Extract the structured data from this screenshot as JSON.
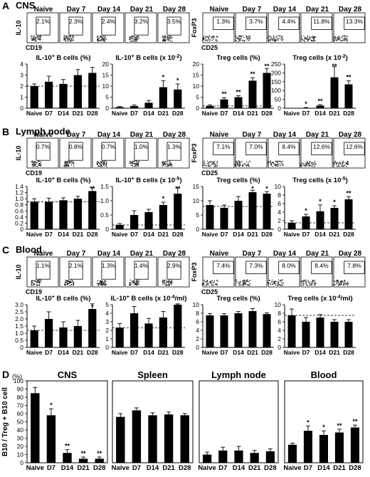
{
  "sections": [
    {
      "letter": "A",
      "title": "CNS"
    },
    {
      "letter": "B",
      "title": "Lymph node"
    },
    {
      "letter": "C",
      "title": "Blood"
    },
    {
      "letter": "D",
      "title": ""
    }
  ],
  "flow": {
    "columns": [
      "Naive",
      "Day 7",
      "Day 14",
      "Day 21",
      "Day 28"
    ],
    "il10_axes": {
      "y": "IL-10",
      "x": "CD19"
    },
    "treg_axes": {
      "y": "FoxP3",
      "x": "CD25"
    },
    "rows": [
      {
        "il10_pct": [
          "2.1%",
          "2.3%",
          "2.4%",
          "3.2%",
          "3.5%"
        ],
        "treg_pct": [
          "1.3%",
          "3.7%",
          "4.4%",
          "11.8%",
          "13.3%"
        ]
      },
      {
        "il10_pct": [
          "0.7%",
          "0.8%",
          "0.7%",
          "1.0%",
          "1.3%"
        ],
        "treg_pct": [
          "7.1%",
          "7.0%",
          "8.4%",
          "12.6%",
          "12.6%"
        ]
      },
      {
        "il10_pct": [
          "1.1%",
          "2.1%",
          "1.3%",
          "1.4%",
          "2.9%"
        ],
        "treg_pct": [
          "7.4%",
          "7.3%",
          "8.0%",
          "8.4%",
          "7.8%"
        ]
      }
    ]
  },
  "chart_data": [
    {
      "type": "bar",
      "section": "A",
      "title_pre": "IL-10",
      "title_sup": "+",
      "title_post": " B cells (%)",
      "categories": [
        "Naive",
        "D7",
        "D14",
        "D21",
        "D28"
      ],
      "values": [
        2.0,
        2.4,
        2.2,
        3.0,
        3.2
      ],
      "errors": [
        0.2,
        0.5,
        0.4,
        0.5,
        0.5
      ],
      "sig": [
        "",
        "",
        "",
        "",
        ""
      ],
      "ylim": [
        0,
        4
      ],
      "yticks": [
        "0",
        "1",
        "2",
        "3",
        "4"
      ],
      "ref": 2.0
    },
    {
      "type": "bar",
      "section": "A",
      "title_pre": "IL-10",
      "title_sup": "+",
      "title_post": " B cells (x 10",
      "title_exp": "-2",
      "title_end": ")",
      "categories": [
        "Naive",
        "D7",
        "D14",
        "D21",
        "D28"
      ],
      "values": [
        0.5,
        1.0,
        2.5,
        9.5,
        8.5
      ],
      "errors": [
        0.3,
        0.5,
        1.0,
        3.0,
        2.5
      ],
      "sig": [
        "",
        "",
        "",
        "*",
        "*"
      ],
      "ylim": [
        0,
        20
      ],
      "yticks": [
        "0",
        "5",
        "10",
        "15",
        "20"
      ],
      "ref": null
    },
    {
      "type": "bar",
      "section": "A",
      "title_pre": "Treg cells (%)",
      "categories": [
        "Naive",
        "D7",
        "D14",
        "D21",
        "D28"
      ],
      "values": [
        1.0,
        4.0,
        5.0,
        12.5,
        16.0
      ],
      "errors": [
        0.5,
        0.8,
        0.7,
        1.3,
        2.0
      ],
      "sig": [
        "",
        "**",
        "**",
        "**",
        "**"
      ],
      "ylim": [
        0,
        20
      ],
      "yticks": [
        "0",
        "5",
        "10",
        "15",
        "20"
      ],
      "ref": 1.0
    },
    {
      "type": "bar",
      "section": "A",
      "title_pre": "Treg cells (x 10",
      "title_exp": "-2",
      "title_end": ")",
      "categories": [
        "Naive",
        "D7",
        "D14",
        "D21",
        "D28"
      ],
      "values": [
        0,
        2,
        15,
        175,
        135
      ],
      "errors": [
        0,
        2,
        5,
        60,
        20
      ],
      "sig": [
        "",
        "*",
        "**",
        "**",
        "**"
      ],
      "ylim": [
        0,
        250
      ],
      "yticks": [
        "0",
        "50",
        "100",
        "150",
        "200",
        "250"
      ],
      "ref": null
    },
    {
      "type": "bar",
      "section": "B",
      "title_pre": "IL-10",
      "title_sup": "+",
      "title_post": " B cells (%)",
      "categories": [
        "Naive",
        "D7",
        "D14",
        "D21",
        "D28"
      ],
      "values": [
        0.9,
        0.9,
        0.95,
        1.0,
        1.25
      ],
      "errors": [
        0.1,
        0.12,
        0.08,
        0.08,
        0.12
      ],
      "sig": [
        "",
        "",
        "",
        "",
        "**"
      ],
      "ylim": [
        0,
        1.4
      ],
      "yticks": [
        "0",
        "0.2",
        "0.4",
        "0.6",
        "0.8",
        "1.0",
        "1.2",
        "1.4"
      ],
      "ref": 0.9
    },
    {
      "type": "bar",
      "section": "B",
      "title_pre": "IL-10",
      "title_sup": "+",
      "title_post": " B cells (x 10",
      "title_exp": "-5",
      "title_end": ")",
      "categories": [
        "Naive",
        "D7",
        "D14",
        "D21",
        "D28"
      ],
      "values": [
        0.15,
        0.5,
        0.6,
        0.85,
        1.25
      ],
      "errors": [
        0.05,
        0.15,
        0.1,
        0.1,
        0.2
      ],
      "sig": [
        "",
        "",
        "",
        "*",
        "**"
      ],
      "ylim": [
        0,
        1.5
      ],
      "yticks": [
        "0",
        "0.5",
        "1.0",
        "1.5"
      ],
      "ref": 0.15
    },
    {
      "type": "bar",
      "section": "B",
      "title_pre": "Treg cells (%)",
      "categories": [
        "Naive",
        "D7",
        "D14",
        "D21",
        "D28"
      ],
      "values": [
        8.5,
        7.5,
        10.0,
        13.0,
        12.5
      ],
      "errors": [
        1.5,
        1.0,
        1.5,
        0.7,
        0.7
      ],
      "sig": [
        "",
        "",
        "",
        "*",
        "*"
      ],
      "ylim": [
        0,
        15
      ],
      "yticks": [
        "0",
        "5",
        "10",
        "15"
      ],
      "ref": 8.0
    },
    {
      "type": "bar",
      "section": "B",
      "title_pre": "Treg cells (x 10",
      "title_exp": "-5",
      "title_end": ")",
      "categories": [
        "Naive",
        "D7",
        "D14",
        "D21",
        "D28"
      ],
      "values": [
        1.5,
        3.0,
        4.2,
        5.0,
        7.0
      ],
      "errors": [
        0.5,
        0.5,
        1.5,
        0.5,
        0.6
      ],
      "sig": [
        "",
        "*",
        "*",
        "*",
        "**"
      ],
      "ylim": [
        0,
        10
      ],
      "yticks": [
        "0",
        "2",
        "4",
        "6",
        "8",
        "10"
      ],
      "ref": 1.5
    },
    {
      "type": "bar",
      "section": "C",
      "title_pre": "IL-10",
      "title_sup": "+",
      "title_post": " B cells (%)",
      "categories": [
        "Naive",
        "D7",
        "D14",
        "D21",
        "D28"
      ],
      "values": [
        1.2,
        2.0,
        1.4,
        1.5,
        2.7
      ],
      "errors": [
        0.3,
        0.5,
        0.4,
        0.4,
        0.4
      ],
      "sig": [
        "",
        "",
        "",
        "",
        "*"
      ],
      "ylim": [
        0,
        3
      ],
      "yticks": [
        "0",
        "0.5",
        "1.0",
        "1.5",
        "2.0",
        "2.5",
        "3.0"
      ],
      "ref": 1.2
    },
    {
      "type": "bar",
      "section": "C",
      "title_pre": "IL-10",
      "title_sup": "+",
      "title_post": " B cells (x 10",
      "title_exp": "-4",
      "title_end": "/ml)",
      "categories": [
        "Naive",
        "D7",
        "D14",
        "D21",
        "D28"
      ],
      "values": [
        2.3,
        4.0,
        2.8,
        3.5,
        5.0
      ],
      "errors": [
        0.5,
        0.8,
        0.6,
        0.7,
        0.6
      ],
      "sig": [
        "",
        "",
        "",
        "",
        "**"
      ],
      "ylim": [
        0,
        5
      ],
      "yticks": [
        "0",
        "1",
        "2",
        "3",
        "4",
        "5"
      ],
      "ref": 2.3
    },
    {
      "type": "bar",
      "section": "C",
      "title_pre": "Treg cells (%)",
      "categories": [
        "Naive",
        "D7",
        "D14",
        "D21",
        "D28"
      ],
      "values": [
        7.5,
        7.5,
        8.0,
        8.5,
        7.8
      ],
      "errors": [
        0.4,
        0.4,
        0.4,
        0.6,
        0.3
      ],
      "sig": [
        "",
        "",
        "",
        "",
        ""
      ],
      "ylim": [
        0,
        10
      ],
      "yticks": [
        "0",
        "2",
        "4",
        "6",
        "8",
        "10"
      ],
      "ref": null
    },
    {
      "type": "bar",
      "section": "C",
      "title_pre": "Treg cells (x 10",
      "title_exp": "-4",
      "title_end": "/ml)",
      "categories": [
        "Naive",
        "D7",
        "D14",
        "D21",
        "D28"
      ],
      "values": [
        7.5,
        6.0,
        7.0,
        6.0,
        6.0
      ],
      "errors": [
        1.5,
        1.0,
        0.7,
        0.5,
        0.5
      ],
      "sig": [
        "",
        "",
        "",
        "",
        ""
      ],
      "ylim": [
        0,
        10
      ],
      "yticks": [
        "0",
        "2",
        "4",
        "6",
        "8",
        "10"
      ],
      "ref": 7.5
    },
    {
      "type": "bar",
      "section": "D",
      "title_pre": "CNS",
      "categories": [
        "Naive",
        "D7",
        "D14",
        "D21",
        "D28"
      ],
      "values": [
        85,
        58,
        12,
        5,
        5
      ],
      "errors": [
        7,
        8,
        4,
        2,
        2
      ],
      "sig": [
        "",
        "*",
        "**",
        "**",
        "**"
      ],
      "ylim": [
        0,
        100
      ],
      "yticks": [
        "0",
        "10",
        "20",
        "30",
        "40",
        "50",
        "60",
        "70",
        "80",
        "90",
        "100"
      ],
      "ylabel": "B10 / Treg + B10 cell",
      "yunit": "(%)",
      "ref": null
    },
    {
      "type": "bar",
      "section": "D",
      "title_pre": "Spleen",
      "categories": [
        "Naive",
        "D7",
        "D14",
        "D21",
        "D28"
      ],
      "values": [
        56,
        64,
        58,
        59,
        58
      ],
      "errors": [
        4,
        3,
        3,
        3,
        2
      ],
      "sig": [
        "",
        "",
        "",
        "",
        ""
      ],
      "ylim": [
        0,
        100
      ],
      "yticks": [],
      "ref": null
    },
    {
      "type": "bar",
      "section": "D",
      "title_pre": "Lymph node",
      "categories": [
        "Naive",
        "D7",
        "D14",
        "D21",
        "D28"
      ],
      "values": [
        10,
        15,
        15,
        12,
        14
      ],
      "errors": [
        3,
        4,
        5,
        3,
        3
      ],
      "sig": [
        "",
        "",
        "",
        "",
        ""
      ],
      "ylim": [
        0,
        100
      ],
      "yticks": [],
      "ref": null
    },
    {
      "type": "bar",
      "section": "D",
      "title_pre": "Blood",
      "categories": [
        "Naive",
        "D7",
        "D14",
        "D21",
        "D28"
      ],
      "values": [
        22,
        39,
        34,
        37,
        43
      ],
      "errors": [
        2,
        6,
        5,
        4,
        3
      ],
      "sig": [
        "",
        "*",
        "*",
        "**",
        "**"
      ],
      "ylim": [
        0,
        100
      ],
      "yticks": [],
      "ref": null
    }
  ]
}
